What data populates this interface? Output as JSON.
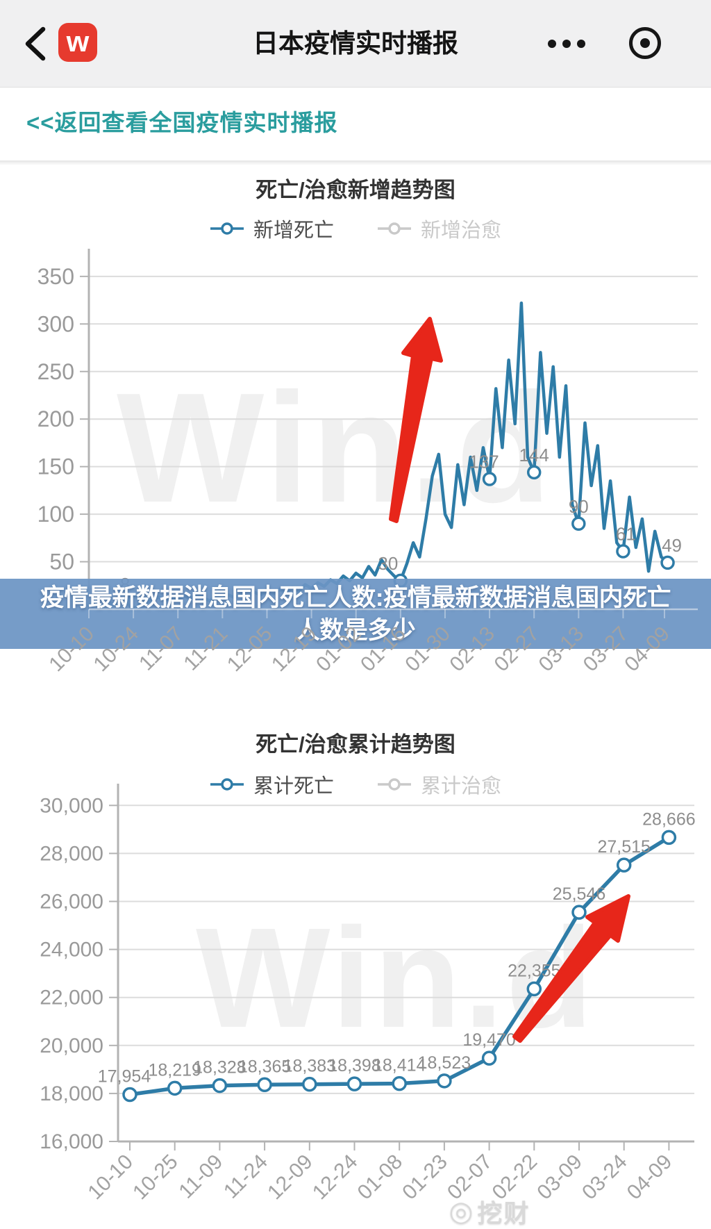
{
  "header": {
    "title": "日本疫情实时播报",
    "app_icon_letter": "w"
  },
  "back_link": {
    "label": "<<返回查看全国疫情实时播报"
  },
  "overlay_banner": {
    "line1": "疫情最新数据消息国内死亡人数:疫情最新数据消息国内死亡",
    "line2": "人数是多少"
  },
  "watermark": "Win.d",
  "footer_watermark": "挖财",
  "colors": {
    "series_blue": "#2e7ca7",
    "inactive_gray": "#c9c9c9",
    "arrow_red": "#e7261a",
    "banner_bg": "rgba(108,148,196,0.93)",
    "banner_text": "#ffffff",
    "link_teal": "#2a9d9e",
    "axis_gray": "#b3b3b3",
    "grid_gray": "#dcdcdc",
    "axis_label_gray": "#9a9a9a",
    "tick_label_gray": "#a2a2a2",
    "data_label_gray": "#8d8d8d",
    "watermark_gray": "#f0f0f0",
    "app_icon_red": "#e63a2e"
  },
  "chart_data": [
    {
      "type": "line",
      "title": "死亡/治愈新增趋势图",
      "legend": [
        {
          "label": "新增死亡",
          "active": true
        },
        {
          "label": "新增治愈",
          "active": false
        }
      ],
      "legend_position": "top",
      "grid": true,
      "xlabel": "",
      "ylabel": "",
      "ylim": [
        0,
        350
      ],
      "y_ticks": [
        50,
        100,
        150,
        200,
        250,
        300,
        350
      ],
      "x_tick_labels": [
        "10-10",
        "10-24",
        "11-07",
        "11-21",
        "12-05",
        "12-19",
        "01-02",
        "01-16",
        "01-30",
        "02-13",
        "02-27",
        "03-13",
        "03-27",
        "04-09"
      ],
      "x_tick_days": [
        0,
        14,
        28,
        42,
        56,
        70,
        84,
        98,
        112,
        126,
        140,
        154,
        168,
        181
      ],
      "total_days": 182,
      "sample_step_days": 2,
      "values": [
        4,
        6,
        3,
        7,
        5,
        9,
        6,
        8,
        11,
        7,
        10,
        13,
        9,
        12,
        10,
        14,
        11,
        16,
        12,
        9,
        13,
        11,
        15,
        12,
        17,
        13,
        18,
        15,
        19,
        16,
        21,
        17,
        23,
        19,
        26,
        22,
        28,
        24,
        31,
        27,
        35,
        30,
        38,
        33,
        45,
        36,
        52,
        42,
        35,
        30,
        48,
        70,
        55,
        95,
        140,
        163,
        100,
        86,
        152,
        110,
        160,
        125,
        170,
        137,
        232,
        170,
        262,
        195,
        322,
        160,
        144,
        270,
        185,
        255,
        160,
        235,
        110,
        90,
        196,
        130,
        172,
        85,
        135,
        70,
        61,
        118,
        65,
        95,
        40,
        82,
        55,
        49
      ],
      "labeled_points": [
        {
          "day": 14,
          "value": 8,
          "label": "8",
          "dx": -12
        },
        {
          "day": 98,
          "value": 30,
          "label": "30",
          "dx": -18
        },
        {
          "day": 126,
          "value": 137,
          "label": "137",
          "dx": -8
        },
        {
          "day": 140,
          "value": 144,
          "label": "144"
        },
        {
          "day": 154,
          "value": 90,
          "label": "90"
        },
        {
          "day": 168,
          "value": 61,
          "label": "61",
          "dx": 4
        },
        {
          "day": 182,
          "value": 49,
          "label": "49",
          "dx": 6
        }
      ]
    },
    {
      "type": "line",
      "title": "死亡/治愈累计趋势图",
      "legend": [
        {
          "label": "累计死亡",
          "active": true
        },
        {
          "label": "累计治愈",
          "active": false
        }
      ],
      "legend_position": "top",
      "grid": true,
      "xlabel": "",
      "ylabel": "",
      "ylim": [
        16000,
        30000
      ],
      "y_ticks": [
        16000,
        18000,
        20000,
        22000,
        24000,
        26000,
        28000,
        30000
      ],
      "categories": [
        "10-10",
        "10-25",
        "11-09",
        "11-24",
        "12-09",
        "12-24",
        "01-08",
        "01-23",
        "02-07",
        "02-22",
        "03-09",
        "03-24",
        "04-09"
      ],
      "values": [
        17954,
        18219,
        18328,
        18365,
        18383,
        18398,
        18414,
        18523,
        19470,
        22355,
        25546,
        27515,
        28666
      ],
      "labels": [
        "17,954",
        "18,219",
        "18,328",
        "18,365",
        "18,383",
        "18,398",
        "18,414",
        "18,523",
        "19,470",
        "22,355",
        "25,546",
        "27,515",
        "28,666"
      ]
    }
  ]
}
